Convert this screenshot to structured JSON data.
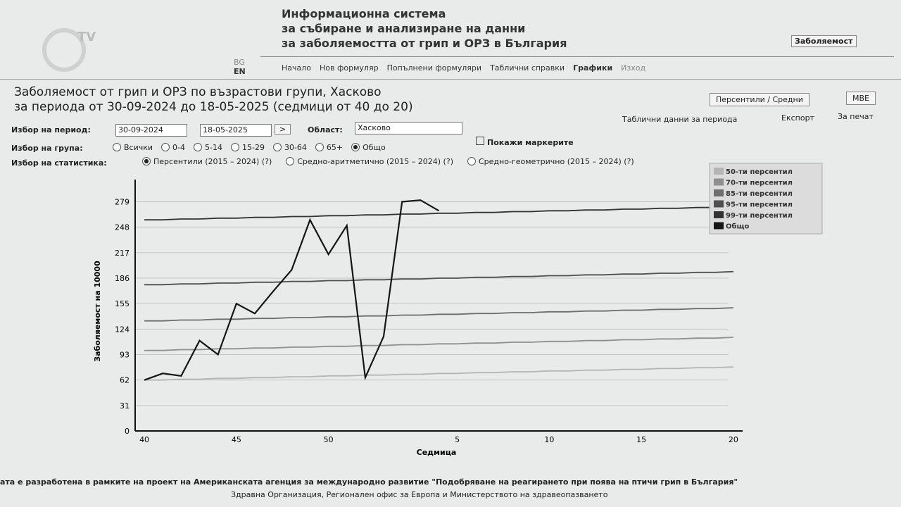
{
  "logo": "TV",
  "header": {
    "lines": [
      "Информационна система",
      "за събиране и анализиране на данни",
      "за заболяемостта от грип и ОРЗ в България"
    ],
    "badge": "Заболяемост"
  },
  "languages": [
    "BG",
    "EN"
  ],
  "nav": [
    "Начало",
    "Нов формуляр",
    "Попълнени формуляри",
    "Таблични справки",
    "Графики",
    "Изход"
  ],
  "page": {
    "title_lines": [
      "Заболяемост от грип и ОРЗ по възрастови групи, Хасково",
      "за периода от 30-09-2024 до 18-05-2025 (седмици от 40 до 20)"
    ],
    "buttons": [
      "Персентили / Средни",
      "MBE"
    ],
    "links": [
      "Таблични данни за периода",
      "Експорт",
      "За печат"
    ]
  },
  "form": {
    "period_label": "Избор на период:",
    "date_from": "30-09-2024",
    "date_to": "18-05-2025",
    "go": ">",
    "region_label": "Област:",
    "region": "Хасково",
    "markers": "Покажи маркерите",
    "group_label": "Избор на група:",
    "groups": [
      "Всички",
      "0-4",
      "5-14",
      "15-29",
      "30-64",
      "65+",
      "Общо"
    ],
    "stat_label": "Избор на статистика:",
    "stats": [
      "Персентили (2015 – 2024) (?)",
      "Средно-аритметично (2015 – 2024) (?)",
      "Средно-геометрично (2015 – 2024) (?)"
    ]
  },
  "chart_data": {
    "type": "line",
    "y_label": "Заболяемост на 10000",
    "x_label": "Седмица",
    "categories": [
      40,
      null,
      null,
      null,
      null,
      45,
      null,
      null,
      null,
      null,
      50,
      null,
      null,
      null,
      null,
      null,
      null,
      5,
      null,
      null,
      null,
      null,
      10,
      null,
      null,
      null,
      null,
      15,
      null,
      null,
      null,
      null,
      20
    ],
    "ylim": [
      0,
      306
    ],
    "yticks": [
      0,
      31,
      62,
      93,
      124,
      155,
      186,
      217,
      248,
      279
    ],
    "grid": true,
    "series": [
      {
        "name": "50-ти персентил",
        "color": "#b5b5b5",
        "values": [
          62,
          62,
          63,
          63,
          64,
          64,
          65,
          65,
          66,
          66,
          67,
          67,
          68,
          68,
          69,
          69,
          70,
          70,
          71,
          71,
          72,
          72,
          73,
          73,
          74,
          74,
          75,
          75,
          76,
          76,
          77,
          77,
          78
        ]
      },
      {
        "name": "70-ти персентил",
        "color": "#8f8f8f",
        "values": [
          98,
          98,
          99,
          99,
          100,
          100,
          101,
          101,
          102,
          102,
          103,
          103,
          104,
          104,
          105,
          105,
          106,
          106,
          107,
          107,
          108,
          108,
          109,
          109,
          110,
          110,
          111,
          111,
          112,
          112,
          113,
          113,
          114
        ]
      },
      {
        "name": "85-ти персентил",
        "color": "#6e6e6e",
        "values": [
          134,
          134,
          135,
          135,
          136,
          136,
          137,
          137,
          138,
          138,
          139,
          139,
          140,
          140,
          141,
          141,
          142,
          142,
          143,
          143,
          144,
          144,
          145,
          145,
          146,
          146,
          147,
          147,
          148,
          148,
          149,
          149,
          150
        ]
      },
      {
        "name": "95-ти персентил",
        "color": "#505050",
        "values": [
          178,
          178,
          179,
          179,
          180,
          180,
          181,
          181,
          182,
          182,
          183,
          183,
          184,
          184,
          185,
          185,
          186,
          186,
          187,
          187,
          188,
          188,
          189,
          189,
          190,
          190,
          191,
          191,
          192,
          192,
          193,
          193,
          194
        ]
      },
      {
        "name": "99-ти персентил",
        "color": "#333333",
        "values": [
          257,
          257,
          258,
          258,
          259,
          259,
          260,
          260,
          261,
          261,
          262,
          262,
          263,
          263,
          264,
          264,
          265,
          265,
          266,
          266,
          267,
          267,
          268,
          268,
          269,
          269,
          270,
          270,
          271,
          271,
          272,
          272,
          273
        ]
      },
      {
        "name": "Общо",
        "color": "#151515",
        "values": [
          62,
          70,
          67,
          110,
          93,
          155,
          143,
          170,
          196,
          257,
          215,
          250,
          65,
          115,
          279,
          281,
          268,
          null,
          null,
          null,
          null,
          null,
          null,
          null,
          null,
          null,
          null,
          null,
          null,
          null,
          null,
          null,
          null
        ]
      }
    ]
  },
  "footer": [
    "ата е разработена в рамките на проект на Американската агенция за международно развитие \"Подобряване на реагирането при поява на птичи грип в България\"",
    "Здравна Организация, Регионален офис за Европа и Министерството на здравеопазването"
  ]
}
